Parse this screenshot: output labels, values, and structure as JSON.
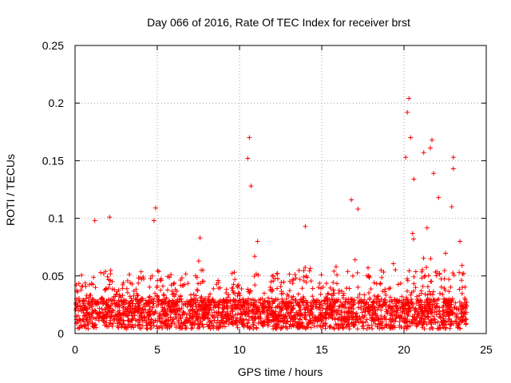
{
  "chart_data": {
    "type": "scatter",
    "title": "Day 066 of 2016, Rate Of TEC Index for receiver brst",
    "xlabel": "GPS time / hours",
    "ylabel": "ROTI / TECUs",
    "xlim": [
      0,
      25
    ],
    "ylim": [
      0,
      0.25
    ],
    "xticks": [
      "0",
      "5",
      "10",
      "15",
      "20",
      "25"
    ],
    "yticks": [
      "0",
      "0.05",
      "0.1",
      "0.15",
      "0.2",
      "0.25"
    ],
    "grid": true,
    "marker": "plus",
    "color": "#ff0000",
    "series": [
      {
        "name": "ROTI",
        "description_of_density": "dense band 0.005-0.04 across 0-24 h",
        "spikes": [
          {
            "x": 1.2,
            "y": 0.098
          },
          {
            "x": 2.1,
            "y": 0.101
          },
          {
            "x": 4.9,
            "y": 0.109
          },
          {
            "x": 4.8,
            "y": 0.098
          },
          {
            "x": 7.6,
            "y": 0.083
          },
          {
            "x": 10.6,
            "y": 0.17
          },
          {
            "x": 10.5,
            "y": 0.152
          },
          {
            "x": 10.7,
            "y": 0.128
          },
          {
            "x": 11.1,
            "y": 0.08
          },
          {
            "x": 14.0,
            "y": 0.093
          },
          {
            "x": 16.8,
            "y": 0.116
          },
          {
            "x": 17.2,
            "y": 0.108
          },
          {
            "x": 20.3,
            "y": 0.204
          },
          {
            "x": 20.2,
            "y": 0.192
          },
          {
            "x": 20.4,
            "y": 0.17
          },
          {
            "x": 20.1,
            "y": 0.153
          },
          {
            "x": 20.6,
            "y": 0.134
          },
          {
            "x": 21.2,
            "y": 0.157
          },
          {
            "x": 21.7,
            "y": 0.168
          },
          {
            "x": 21.6,
            "y": 0.161
          },
          {
            "x": 21.8,
            "y": 0.139
          },
          {
            "x": 22.1,
            "y": 0.118
          },
          {
            "x": 23.0,
            "y": 0.153
          },
          {
            "x": 23.0,
            "y": 0.143
          },
          {
            "x": 22.9,
            "y": 0.11
          },
          {
            "x": 23.4,
            "y": 0.08
          }
        ]
      }
    ]
  }
}
